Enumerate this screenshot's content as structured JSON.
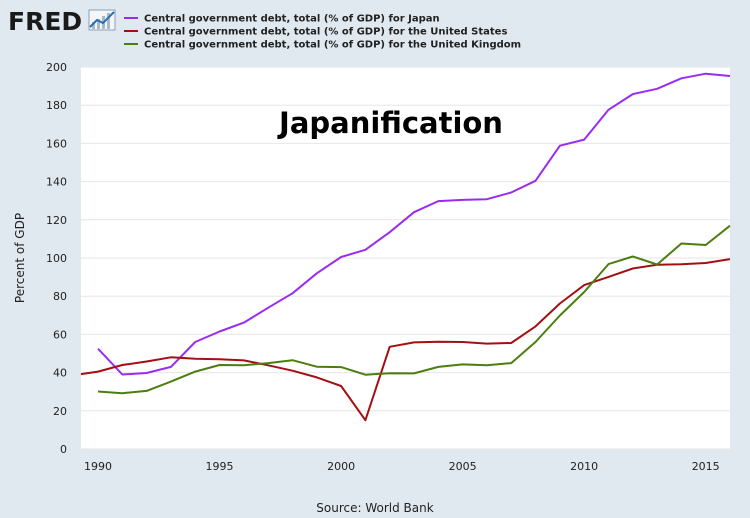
{
  "logo": {
    "text": "FRED"
  },
  "chart_data": {
    "type": "line",
    "title": "",
    "annotation": "Japanification",
    "xlabel": "",
    "ylabel": "Percent of GDP",
    "source": "Source: World Bank",
    "xlim": [
      1989.3,
      2016
    ],
    "ylim": [
      0,
      200
    ],
    "x_ticks": [
      1990,
      1995,
      2000,
      2005,
      2010,
      2015
    ],
    "y_ticks": [
      0,
      20,
      40,
      60,
      80,
      100,
      120,
      140,
      160,
      180,
      200
    ],
    "grid": true,
    "legend_position": "top",
    "series": [
      {
        "name": "Central government debt, total (% of GDP) for Japan",
        "color": "#9a2cf0",
        "x": [
          1990,
          1991,
          1992,
          1993,
          1994,
          1995,
          1996,
          1997,
          1998,
          1999,
          2000,
          2001,
          2002,
          2003,
          2004,
          2005,
          2006,
          2007,
          2008,
          2009,
          2010,
          2011,
          2012,
          2013,
          2014,
          2015,
          2016
        ],
        "y": [
          52.5,
          39,
          39.8,
          43,
          56,
          61.5,
          66.2,
          74,
          81.5,
          92,
          100.5,
          104.3,
          113.5,
          124,
          129.8,
          130.4,
          130.8,
          134.3,
          140.4,
          158.8,
          162,
          177.6,
          185.8,
          188.6,
          194.1,
          196.5,
          195.3
        ]
      },
      {
        "name": "Central government debt, total (% of GDP) for the United States",
        "color": "#a21013",
        "x": [
          1989.3,
          1990,
          1991,
          1992,
          1993,
          1994,
          1995,
          1996,
          1997,
          1998,
          1999,
          2000,
          2001,
          2002,
          2003,
          2004,
          2005,
          2006,
          2007,
          2008,
          2009,
          2010,
          2011,
          2012,
          2013,
          2014,
          2015,
          2016
        ],
        "y": [
          39.2,
          40.5,
          44,
          45.8,
          48,
          47.2,
          47,
          46.4,
          43.8,
          41,
          37.5,
          33,
          15.1,
          53.5,
          55.8,
          56.2,
          56,
          55.2,
          55.5,
          64.2,
          76.2,
          85.8,
          90.1,
          94.5,
          96.5,
          96.7,
          97.4,
          99.4
        ]
      },
      {
        "name": "Central government debt, total (% of GDP) for the United Kingdom",
        "color": "#4b7e0f",
        "x": [
          1990,
          1991,
          1992,
          1993,
          1994,
          1995,
          1996,
          1997,
          1998,
          1999,
          2000,
          2001,
          2002,
          2003,
          2004,
          2005,
          2006,
          2007,
          2008,
          2009,
          2010,
          2011,
          2012,
          2013,
          2014,
          2015,
          2016
        ],
        "y": [
          30.1,
          29.2,
          30.4,
          35.3,
          40.5,
          44,
          43.9,
          45,
          46.5,
          43.1,
          42.9,
          38.9,
          39.7,
          39.6,
          43,
          44.3,
          43.9,
          45,
          56,
          69.9,
          82.2,
          96.8,
          100.8,
          96.6,
          107.6,
          106.8,
          116.9
        ]
      }
    ]
  }
}
